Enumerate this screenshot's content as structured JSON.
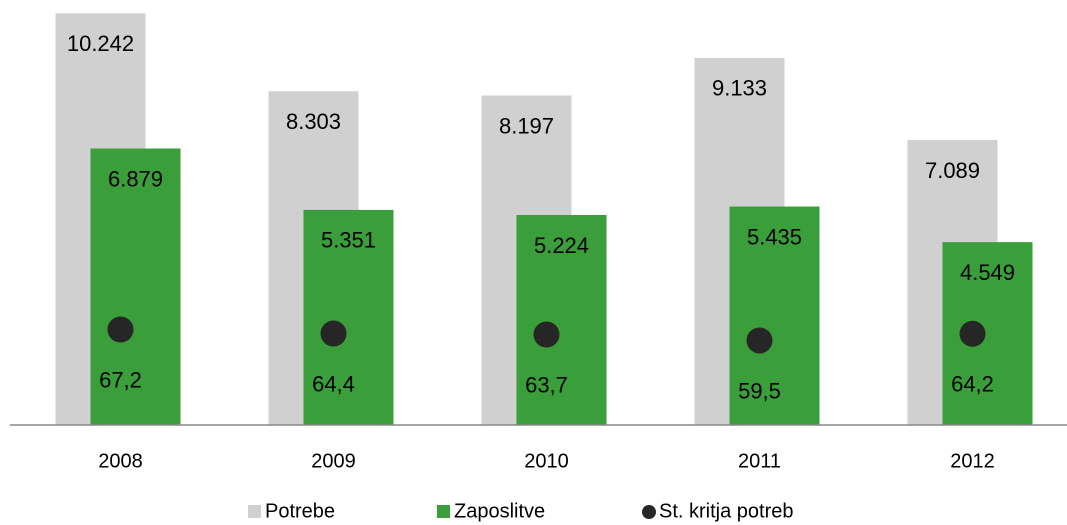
{
  "chart_data": {
    "type": "bar",
    "categories": [
      "2008",
      "2009",
      "2010",
      "2011",
      "2012"
    ],
    "series": [
      {
        "name": "Potrebe",
        "color": "#d0d0d0",
        "values": [
          10242,
          8303,
          8197,
          9133,
          7089
        ],
        "value_labels": [
          "10.242",
          "8.303",
          "8.197",
          "9.133",
          "7.089"
        ]
      },
      {
        "name": "Zaposlitve",
        "color": "#3a9e3a",
        "values": [
          6879,
          5351,
          5224,
          5435,
          4549
        ],
        "value_labels": [
          "6.879",
          "5.351",
          "5.224",
          "5.435",
          "4.549"
        ]
      },
      {
        "name": "St. kritja potreb",
        "color": "#262626",
        "axis": "y2",
        "marker": "circle",
        "values": [
          67.2,
          64.4,
          63.7,
          59.5,
          64.2
        ],
        "value_labels": [
          "67,2",
          "64,4",
          "63,7",
          "59,5",
          "64,2"
        ]
      }
    ],
    "ylim": [
      0,
      10250
    ],
    "y2lim": [
      0,
      290
    ]
  }
}
